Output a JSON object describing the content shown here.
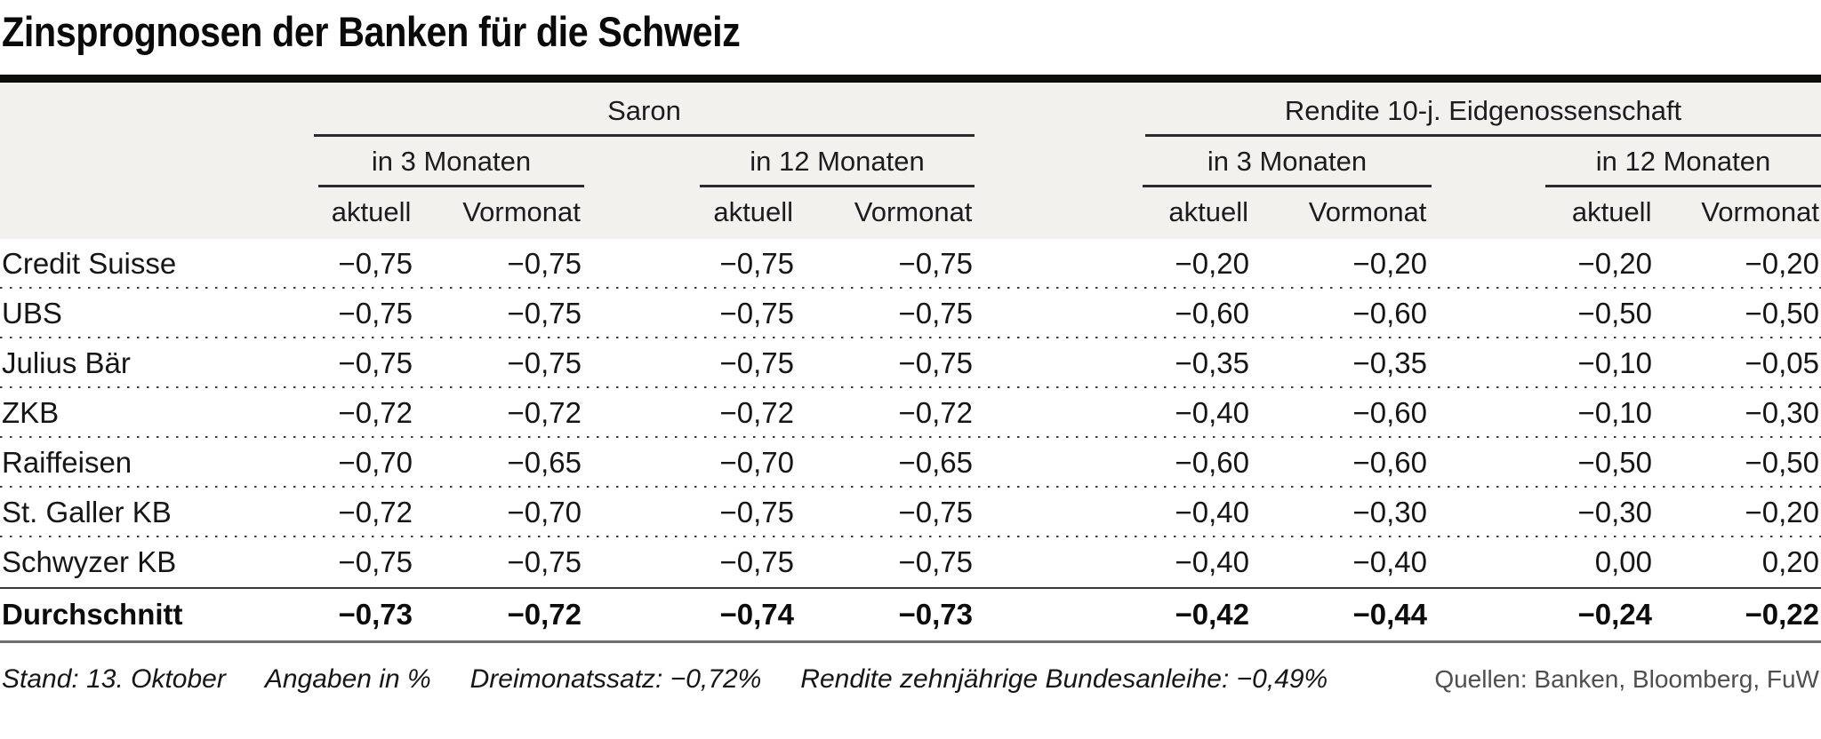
{
  "title": "Zinsprognosen der Banken für die Schweiz",
  "header": {
    "group_saron": "Saron",
    "group_rendite": "Rendite 10-j. Eidgenossenschaft",
    "sub_3m": "in 3 Monaten",
    "sub_12m": "in 12 Monaten",
    "col_aktuell": "aktuell",
    "col_vormonat": "Vormonat"
  },
  "footer": {
    "stand": "Stand: 13. Oktober",
    "angaben": "Angaben in %",
    "dreimonatssatz": "Dreimonatssatz: −0,72%",
    "rendite_anleihe": "Rendite zehnjährige Bundesanleihe: −0,49%",
    "quellen": "Quellen: Banken, Bloomberg, FuW"
  },
  "chart_data": {
    "type": "table",
    "title": "Zinsprognosen der Banken für die Schweiz",
    "unit": "Angaben in %",
    "as_of": "Stand: 13. Oktober",
    "column_groups": [
      {
        "label": "Saron",
        "columns": [
          "in 3 Monaten aktuell",
          "in 3 Monaten Vormonat",
          "in 12 Monaten aktuell",
          "in 12 Monaten Vormonat"
        ]
      },
      {
        "label": "Rendite 10-j. Eidgenossenschaft",
        "columns": [
          "in 3 Monaten aktuell",
          "in 3 Monaten Vormonat",
          "in 12 Monaten aktuell",
          "in 12 Monaten Vormonat"
        ]
      }
    ],
    "rows": [
      {
        "bank": "Credit Suisse",
        "values": [
          "−0,75",
          "−0,75",
          "−0,75",
          "−0,75",
          "−0,20",
          "−0,20",
          "−0,20",
          "−0,20"
        ]
      },
      {
        "bank": "UBS",
        "values": [
          "−0,75",
          "−0,75",
          "−0,75",
          "−0,75",
          "−0,60",
          "−0,60",
          "−0,50",
          "−0,50"
        ]
      },
      {
        "bank": "Julius Bär",
        "values": [
          "−0,75",
          "−0,75",
          "−0,75",
          "−0,75",
          "−0,35",
          "−0,35",
          "−0,10",
          "−0,05"
        ]
      },
      {
        "bank": "ZKB",
        "values": [
          "−0,72",
          "−0,72",
          "−0,72",
          "−0,72",
          "−0,40",
          "−0,60",
          "−0,10",
          "−0,30"
        ]
      },
      {
        "bank": "Raiffeisen",
        "values": [
          "−0,70",
          "−0,65",
          "−0,70",
          "−0,65",
          "−0,60",
          "−0,60",
          "−0,50",
          "−0,50"
        ]
      },
      {
        "bank": "St. Galler KB",
        "values": [
          "−0,72",
          "−0,70",
          "−0,75",
          "−0,75",
          "−0,40",
          "−0,30",
          "−0,30",
          "−0,20"
        ]
      },
      {
        "bank": "Schwyzer KB",
        "values": [
          "−0,75",
          "−0,75",
          "−0,75",
          "−0,75",
          "−0,40",
          "−0,40",
          "0,00",
          "0,20"
        ]
      }
    ],
    "average_row": {
      "bank": "Durchschnitt",
      "values": [
        "−0,73",
        "−0,72",
        "−0,74",
        "−0,73",
        "−0,42",
        "−0,44",
        "−0,24",
        "−0,22"
      ]
    }
  }
}
